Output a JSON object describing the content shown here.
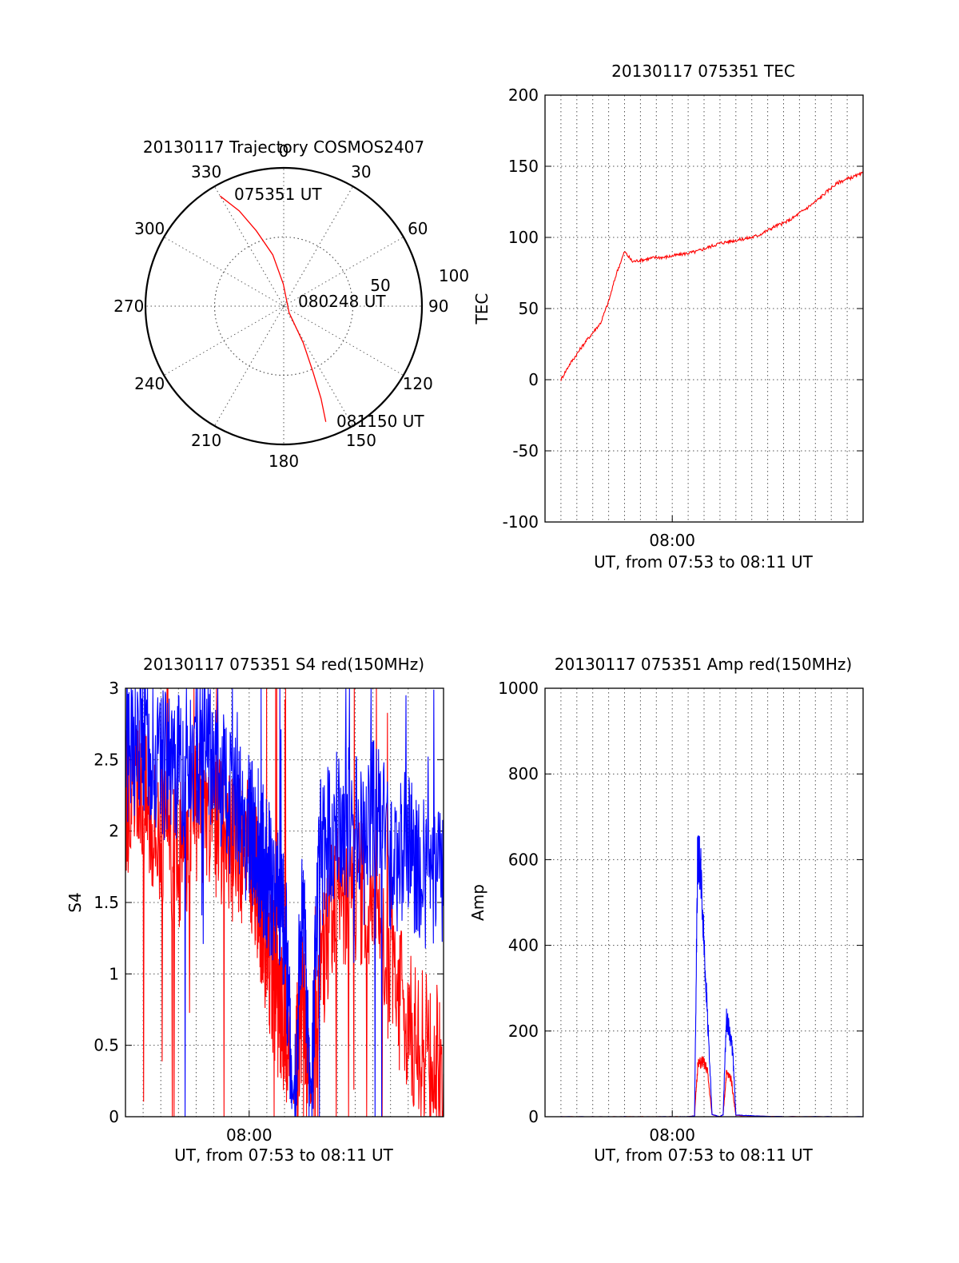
{
  "chart_data": [
    {
      "type": "polar",
      "title": "20130117 Trajectory COSMOS2407",
      "angle_labels": [
        "0",
        "30",
        "60",
        "90",
        "120",
        "150",
        "180",
        "210",
        "240",
        "270",
        "300",
        "330"
      ],
      "radius_labels": [
        "50",
        "100"
      ],
      "rlim": [
        0,
        100
      ],
      "grid": true,
      "series": [
        {
          "color": "#ff0000",
          "points": [
            {
              "az": 330,
              "r": 92
            },
            {
              "az": 335,
              "r": 76
            },
            {
              "az": 340,
              "r": 58
            },
            {
              "az": 348,
              "r": 38
            },
            {
              "az": 359,
              "r": 16
            },
            {
              "az": 140,
              "r": 6
            },
            {
              "az": 152,
              "r": 30
            },
            {
              "az": 156,
              "r": 52
            },
            {
              "az": 158,
              "r": 72
            },
            {
              "az": 160,
              "r": 89
            }
          ]
        }
      ],
      "annotations": [
        {
          "text": "075351 UT",
          "az": 345,
          "r": 84
        },
        {
          "text": "080248 UT",
          "az": 78,
          "r": 32
        },
        {
          "text": "081150 UT",
          "az": 148,
          "r": 104
        }
      ]
    },
    {
      "type": "line",
      "title": "20130117 075351 TEC",
      "xlabel": "UT, from 07:53 to 08:11 UT",
      "ylabel": "TEC",
      "xlim": [
        472,
        492
      ],
      "ylim": [
        -100,
        200
      ],
      "yticks": [
        "200",
        "150",
        "100",
        "50",
        "0",
        "-50",
        "-100"
      ],
      "xtick_labels": [
        {
          "x": 480,
          "label": "08:00"
        }
      ],
      "grid": true,
      "series": [
        {
          "color": "#ff0000",
          "x": [
            473.0,
            473.5,
            474.0,
            474.5,
            475.0,
            475.5,
            476.0,
            476.5,
            477.0,
            477.5,
            478.0,
            478.5,
            479.0,
            479.5,
            480.0,
            480.5,
            481.0,
            481.5,
            482.0,
            482.5,
            483.0,
            483.5,
            484.0,
            484.5,
            485.0,
            485.5,
            486.0,
            486.5,
            487.0,
            487.5,
            488.0,
            488.5,
            489.0,
            489.5,
            490.0,
            490.5,
            491.0,
            491.5,
            492.0
          ],
          "y": [
            0,
            10,
            18,
            26,
            33,
            40,
            55,
            75,
            90,
            83,
            84,
            85,
            86,
            86,
            87,
            88,
            89,
            90,
            92,
            94,
            96,
            97,
            98,
            99,
            100,
            102,
            105,
            108,
            110,
            113,
            117,
            121,
            125,
            130,
            135,
            139,
            141,
            143,
            145
          ]
        }
      ]
    },
    {
      "type": "line",
      "title": "20130117 075351 S4 red(150MHz)",
      "xlabel": "UT, from 07:53 to 08:11 UT",
      "ylabel": "S4",
      "xlim": [
        473,
        491
      ],
      "ylim": [
        0,
        3
      ],
      "yticks": [
        "3",
        "2.5",
        "2",
        "1.5",
        "1",
        "0.5",
        "0"
      ],
      "xtick_labels": [
        {
          "x": 480,
          "label": "08:00"
        }
      ],
      "grid": true,
      "series": [
        {
          "color": "#ff0000",
          "x": [
            473.0,
            474.0,
            475.0,
            476.0,
            477.0,
            478.0,
            479.0,
            480.0,
            480.5,
            481.0,
            481.5,
            482.0,
            482.5,
            483.0,
            483.5,
            484.0,
            485.0,
            486.0,
            487.0,
            488.0,
            489.0,
            490.0,
            491.0
          ],
          "y": [
            2.2,
            2.3,
            2.0,
            1.8,
            2.1,
            2.0,
            1.9,
            1.9,
            1.6,
            1.2,
            0.9,
            0.6,
            0.1,
            0.8,
            0.1,
            0.9,
            1.6,
            1.6,
            1.5,
            1.0,
            0.6,
            0.5,
            0.3
          ]
        },
        {
          "color": "#0000ff",
          "x": [
            473.0,
            474.0,
            475.0,
            476.0,
            477.0,
            478.0,
            479.0,
            480.0,
            480.5,
            481.0,
            481.5,
            482.0,
            482.5,
            483.0,
            483.5,
            484.0,
            485.0,
            486.0,
            487.0,
            488.0,
            489.0,
            490.0,
            491.0
          ],
          "y": [
            2.6,
            2.7,
            2.5,
            2.4,
            2.6,
            2.5,
            2.2,
            2.0,
            1.9,
            1.7,
            1.6,
            1.4,
            0.1,
            1.5,
            0.15,
            1.8,
            2.1,
            2.0,
            2.2,
            1.8,
            1.9,
            1.7,
            1.6
          ]
        }
      ]
    },
    {
      "type": "line",
      "title": "20130117 075351 Amp red(150MHz)",
      "xlabel": "UT, from 07:53 to 08:11 UT",
      "ylabel": "Amp",
      "xlim": [
        472,
        492
      ],
      "ylim": [
        0,
        1000
      ],
      "yticks": [
        "1000",
        "800",
        "600",
        "400",
        "200",
        "0"
      ],
      "xtick_labels": [
        {
          "x": 480,
          "label": "08:00"
        }
      ],
      "grid": true,
      "series": [
        {
          "color": "#ff0000",
          "x": [
            473.0,
            476.0,
            478.0,
            480.0,
            481.0,
            481.4,
            481.6,
            481.9,
            482.2,
            482.5,
            483.0,
            483.2,
            483.4,
            483.7,
            484.0,
            487.0,
            492.0
          ],
          "y": [
            0,
            0,
            0,
            0,
            0,
            2,
            120,
            130,
            110,
            5,
            0,
            5,
            100,
            90,
            3,
            0,
            0
          ]
        },
        {
          "color": "#0000ff",
          "x": [
            473.0,
            476.0,
            478.0,
            480.0,
            481.0,
            481.4,
            481.6,
            481.8,
            482.0,
            482.2,
            482.5,
            483.0,
            483.2,
            483.4,
            483.6,
            483.8,
            484.0,
            485.0,
            487.0,
            492.0
          ],
          "y": [
            0,
            0,
            0,
            0,
            0,
            2,
            620,
            560,
            400,
            250,
            5,
            0,
            5,
            230,
            200,
            150,
            4,
            2,
            0,
            0
          ]
        }
      ]
    }
  ]
}
